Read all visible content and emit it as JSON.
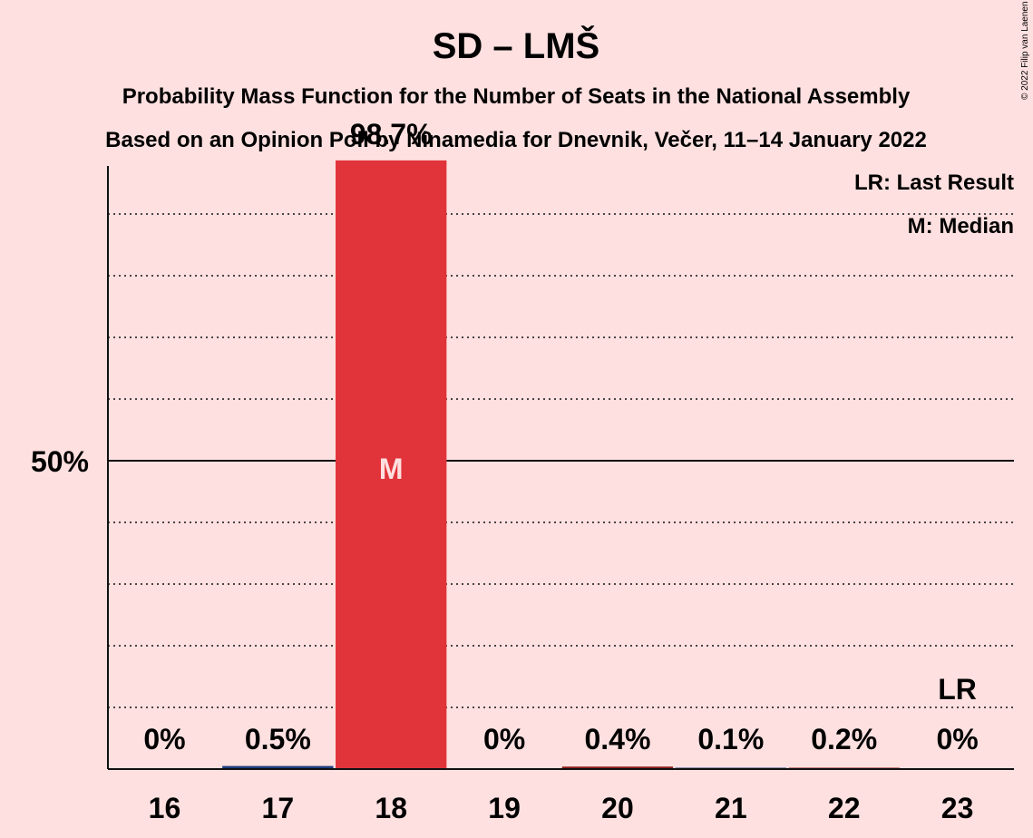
{
  "chart_data": {
    "type": "bar",
    "title": "SD – LMŠ",
    "subtitle": "Probability Mass Function for the Number of Seats in the National Assembly",
    "source": "Based on an Opinion Poll by Ninamedia for Dnevnik, Večer, 11–14 January 2022",
    "copyright": "© 2022 Filip van Laenen",
    "categories": [
      "16",
      "17",
      "18",
      "19",
      "20",
      "21",
      "22",
      "23"
    ],
    "values": [
      0,
      0.5,
      98.7,
      0,
      0.4,
      0.1,
      0.2,
      0
    ],
    "value_labels": [
      "0%",
      "0.5%",
      "98.7%",
      "0%",
      "0.4%",
      "0.1%",
      "0.2%",
      "0%"
    ],
    "ylim": [
      0,
      100
    ],
    "ytick_label": "50%",
    "ytick_value": 50,
    "grid_step": 10,
    "median_category": "18",
    "median_label": "M",
    "last_result_category": "23",
    "last_result_label": "LR",
    "legend": [
      "LR: Last Result",
      "M: Median"
    ],
    "legend_position": "top-right",
    "colors": {
      "background": "#FFE0E0",
      "median_bar": "#E0343A",
      "bar": "#1C3E7E",
      "bar_alt": "#8B1A1A",
      "text": "#111111"
    }
  }
}
